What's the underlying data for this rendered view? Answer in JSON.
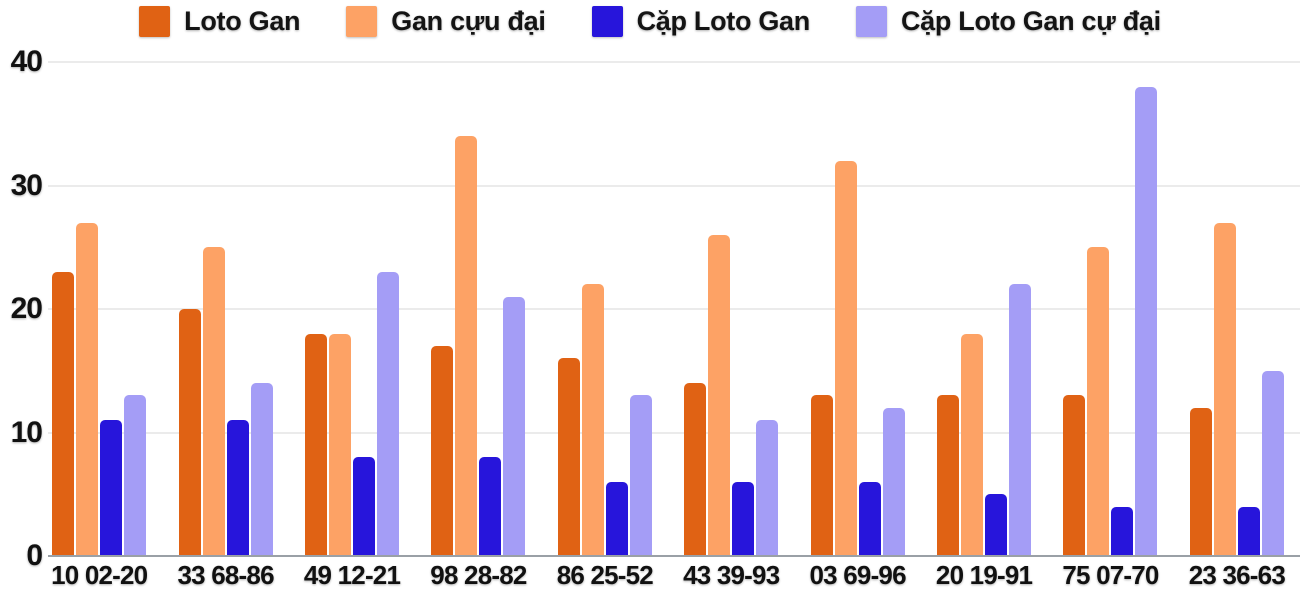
{
  "chart_data": {
    "type": "bar",
    "title": "",
    "xlabel": "",
    "ylabel": "",
    "ylim": [
      0,
      40
    ],
    "yticks": [
      0,
      10,
      20,
      30,
      40
    ],
    "grid": true,
    "legend_position": "top",
    "categories": [
      "10 02-20",
      "33 68-86",
      "49 12-21",
      "98 28-82",
      "86 25-52",
      "43 39-93",
      "03 69-96",
      "20 19-91",
      "75 07-70",
      "23 36-63"
    ],
    "series": [
      {
        "name": "Loto Gan",
        "color": "#E06214",
        "values": [
          23,
          20,
          18,
          17,
          16,
          14,
          13,
          13,
          13,
          12
        ]
      },
      {
        "name": "Gan cựu đại",
        "color": "#FDA265",
        "values": [
          27,
          25,
          18,
          34,
          22,
          26,
          32,
          18,
          25,
          27
        ]
      },
      {
        "name": "Cặp Loto Gan",
        "color": "#2715DB",
        "values": [
          11,
          11,
          8,
          8,
          6,
          6,
          6,
          5,
          4,
          4
        ]
      },
      {
        "name": "Cặp Loto Gan cự đại",
        "color": "#A49DF6",
        "values": [
          13,
          14,
          23,
          21,
          13,
          11,
          12,
          22,
          38,
          15
        ]
      }
    ],
    "colors": {
      "gridline": "#ebebeb",
      "axis_line": "#9aa0a6",
      "text": "#111111",
      "background": "#ffffff"
    }
  }
}
